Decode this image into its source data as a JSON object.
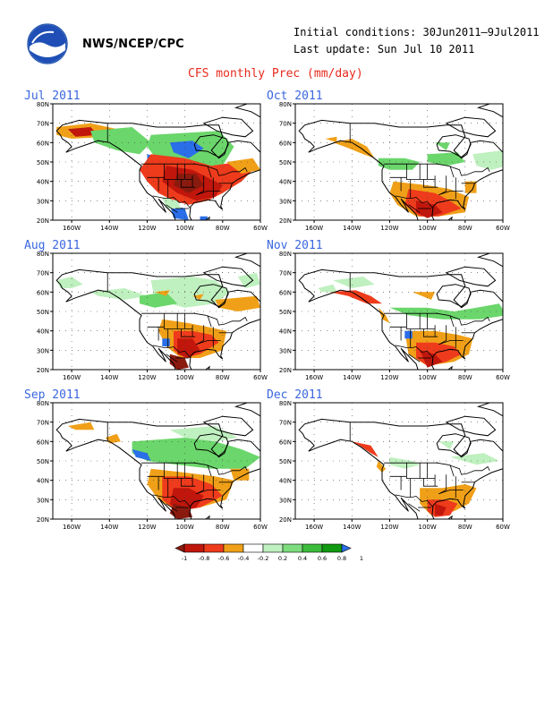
{
  "header": {
    "org": "NWS/NCEP/CPC",
    "initial_conditions": "Initial conditions: 30Jun2011–9Jul2011",
    "last_update": "Last update: Sun Jul 10 2011",
    "title": "CFS monthly Prec (mm/day)",
    "logo": "noaa-logo"
  },
  "axes": {
    "lat_labels": [
      "80N",
      "70N",
      "60N",
      "50N",
      "40N",
      "30N",
      "20N"
    ],
    "lon_labels": [
      "160W",
      "140W",
      "120W",
      "100W",
      "80W",
      "60W"
    ]
  },
  "panels": [
    {
      "title": "Jul 2011"
    },
    {
      "title": "Oct 2011"
    },
    {
      "title": "Aug 2011"
    },
    {
      "title": "Nov 2011"
    },
    {
      "title": "Sep 2011"
    },
    {
      "title": "Dec 2011"
    }
  ],
  "legend": {
    "labels": [
      "-1",
      "-0.8",
      "-0.6",
      "-0.4",
      "-0.2",
      "0.2",
      "0.4",
      "0.6",
      "0.8",
      "1"
    ],
    "colors": [
      "#8b1a0e",
      "#c0160c",
      "#ee3b1c",
      "#f0a018",
      "#ffffff",
      "#bff0bf",
      "#7ddc7d",
      "#3cbc3c",
      "#119911",
      "#2a6ee8"
    ]
  },
  "colors": {
    "strong_dry": "#8b1a0e",
    "dry": "#c0160c",
    "moderate_dry": "#ee3b1c",
    "light_dry": "#f0a018",
    "light_wet": "#bff0bf",
    "wet": "#6bd66b",
    "strong_wet": "#1e9c1e",
    "very_wet": "#2a6ee8",
    "title_blue": "#3a66e0",
    "title_red": "#e8291c"
  }
}
